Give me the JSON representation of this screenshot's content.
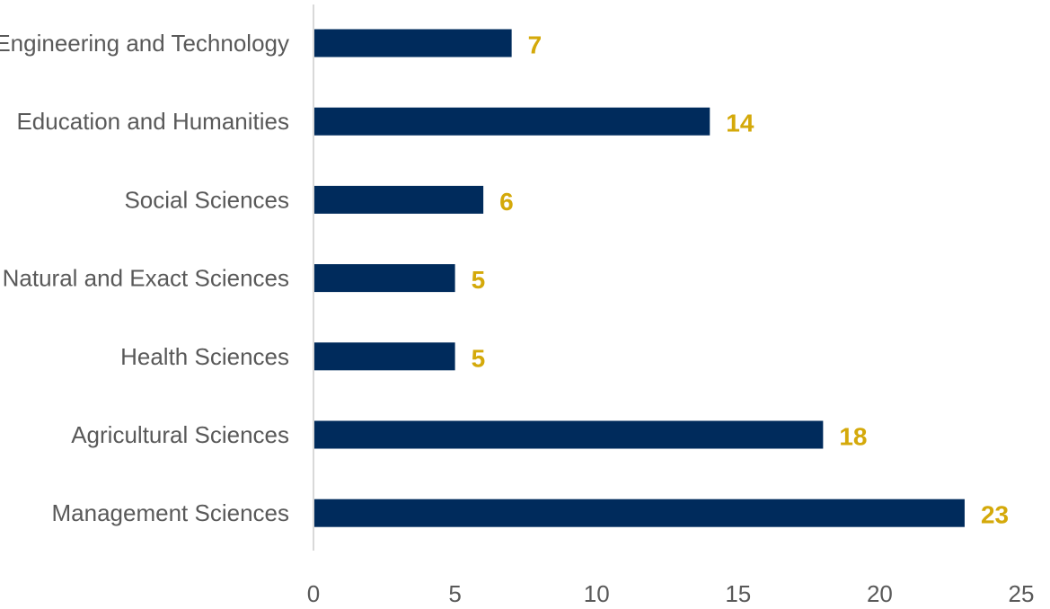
{
  "chart_data": {
    "type": "bar",
    "orientation": "horizontal",
    "categories": [
      "Engineering and Technology",
      "Education and Humanities",
      "Social Sciences",
      "Natural and Exact Sciences",
      "Health Sciences",
      "Agricultural Sciences",
      "Management Sciences"
    ],
    "values": [
      7,
      14,
      6,
      5,
      5,
      18,
      23
    ],
    "xlim": [
      0,
      25
    ],
    "xticks": [
      0,
      5,
      10,
      15,
      20,
      25
    ],
    "title": "",
    "xlabel": "",
    "ylabel": "",
    "grid": false,
    "legend": "none",
    "data_labels": true
  },
  "colors": {
    "bar": "#002B5C",
    "data_label": "#D4A90A",
    "axis_line": "#D9D9D9",
    "text": "#595959"
  }
}
